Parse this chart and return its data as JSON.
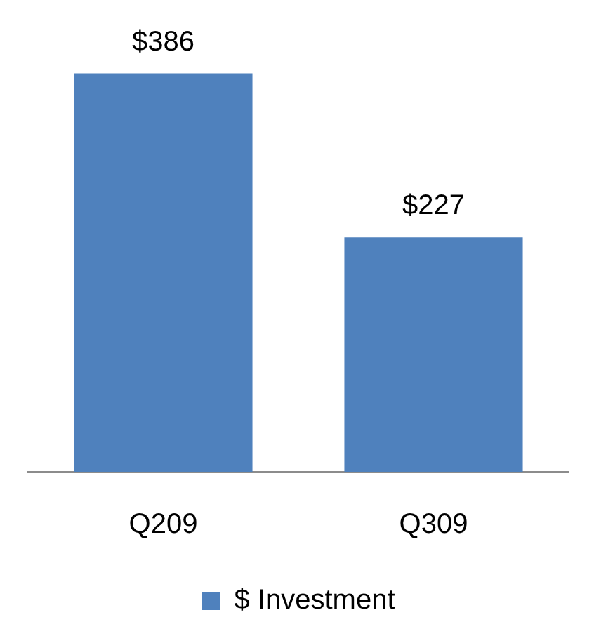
{
  "chart_data": {
    "type": "bar",
    "categories": [
      "Q209",
      "Q309"
    ],
    "series": [
      {
        "name": "$ Investment",
        "color": "#4f81bd",
        "values": [
          386,
          227
        ],
        "value_labels": [
          "$386",
          "$227"
        ]
      }
    ],
    "grid": false,
    "legend": "bottom"
  }
}
